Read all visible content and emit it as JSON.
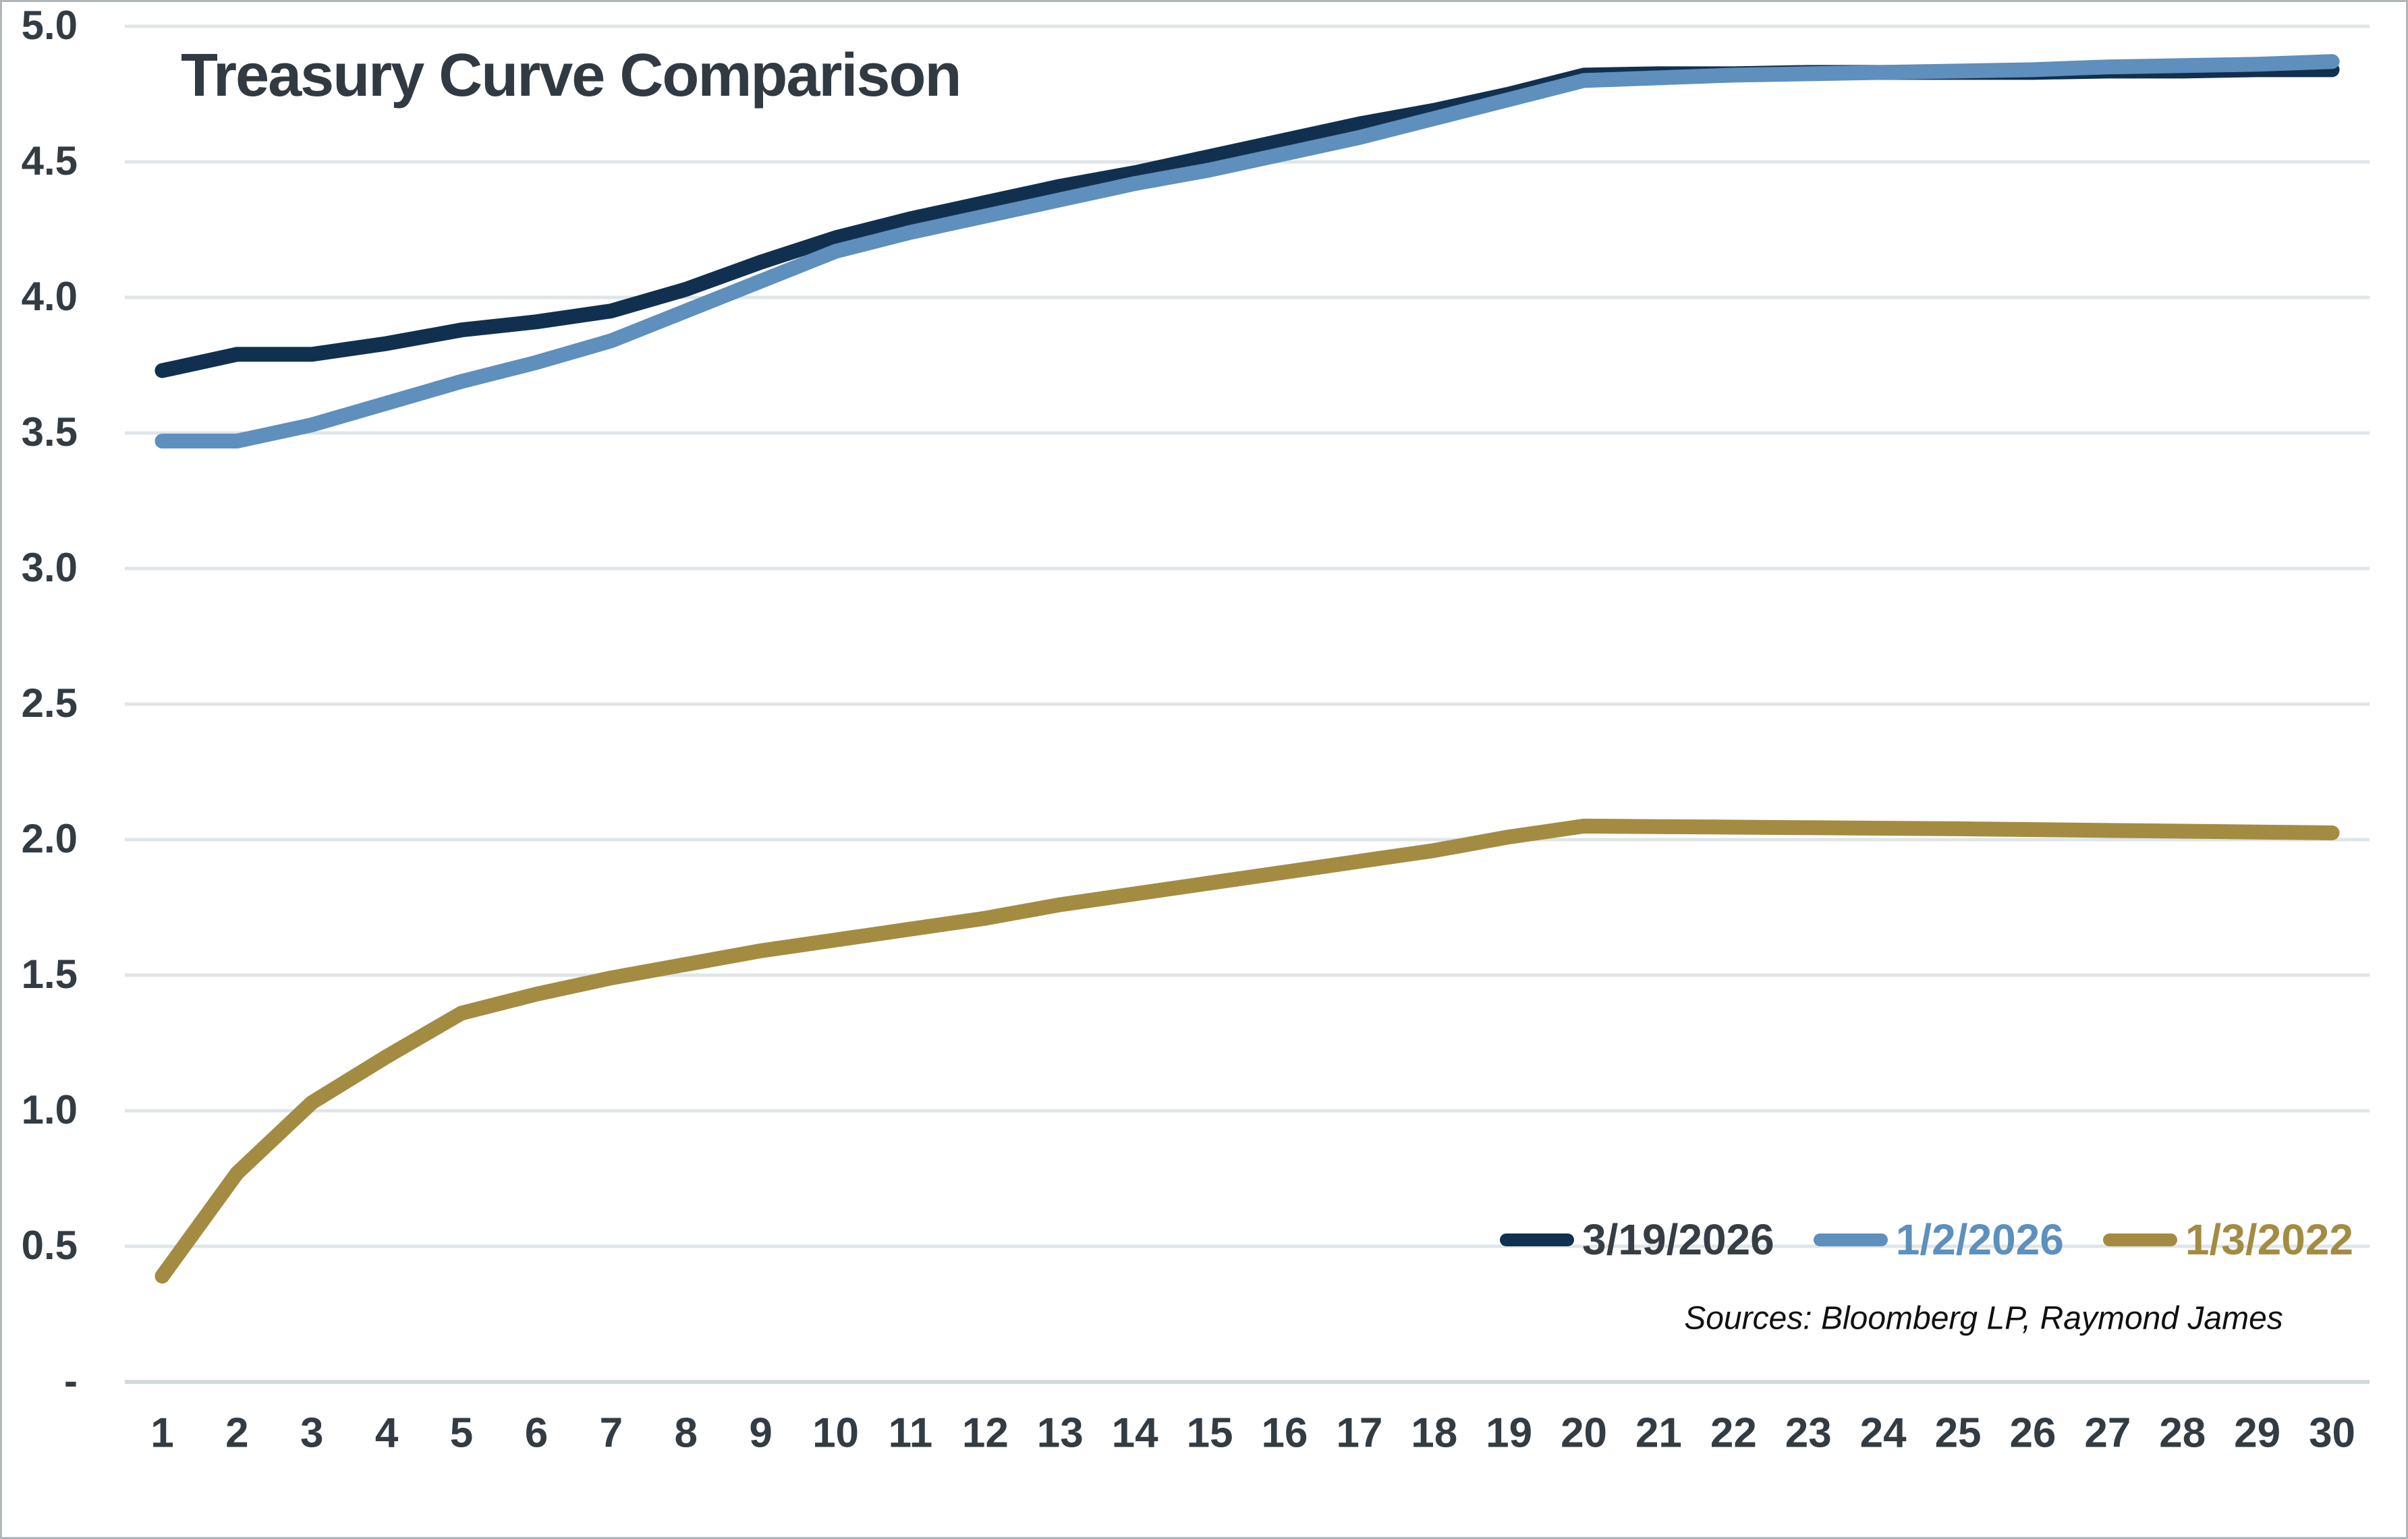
{
  "chart_data": {
    "type": "line",
    "title": "Treasury Curve Comparison",
    "sources_note": "Sources: Bloomberg LP, Raymond James",
    "xlabel": "",
    "ylabel": "",
    "x": [
      1,
      2,
      3,
      4,
      5,
      6,
      7,
      8,
      9,
      10,
      11,
      12,
      13,
      14,
      15,
      16,
      17,
      18,
      19,
      20,
      21,
      22,
      23,
      24,
      25,
      26,
      27,
      28,
      29,
      30
    ],
    "ylim": [
      0,
      5
    ],
    "grid": "horizontal",
    "legend_position": "inside-bottom-right",
    "y_ticks": [
      {
        "label": "5.0",
        "value": 5.0
      },
      {
        "label": "4.5",
        "value": 4.5
      },
      {
        "label": "4.0",
        "value": 4.0
      },
      {
        "label": "3.5",
        "value": 3.5
      },
      {
        "label": "3.0",
        "value": 3.0
      },
      {
        "label": "2.5",
        "value": 2.5
      },
      {
        "label": "2.0",
        "value": 2.0
      },
      {
        "label": "1.5",
        "value": 1.5
      },
      {
        "label": "1.0",
        "value": 1.0
      },
      {
        "label": "0.5",
        "value": 0.5
      },
      {
        "label": "-",
        "value": 0.0
      }
    ],
    "series": [
      {
        "name": "3/19/2026",
        "color": "#11304f",
        "label_color": "#363d45",
        "values": [
          3.73,
          3.79,
          3.79,
          3.83,
          3.88,
          3.91,
          3.95,
          4.03,
          4.13,
          4.22,
          4.29,
          4.35,
          4.41,
          4.46,
          4.52,
          4.58,
          4.64,
          4.69,
          4.75,
          4.82,
          4.825,
          4.825,
          4.83,
          4.83,
          4.83,
          4.83,
          4.835,
          4.835,
          4.84,
          4.84
        ]
      },
      {
        "name": "1/2/2026",
        "color": "#5e8fbd",
        "label_color": "#5e8fbd",
        "values": [
          3.47,
          3.47,
          3.53,
          3.61,
          3.69,
          3.76,
          3.84,
          3.95,
          4.06,
          4.17,
          4.24,
          4.3,
          4.36,
          4.42,
          4.47,
          4.53,
          4.59,
          4.66,
          4.73,
          4.8,
          4.81,
          4.82,
          4.825,
          4.83,
          4.835,
          4.84,
          4.85,
          4.855,
          4.86,
          4.87
        ]
      },
      {
        "name": "1/3/2022",
        "color": "#a38c42",
        "label_color": "#a38c42",
        "values": [
          0.39,
          0.77,
          1.03,
          1.2,
          1.36,
          1.43,
          1.49,
          1.54,
          1.59,
          1.63,
          1.67,
          1.71,
          1.76,
          1.8,
          1.84,
          1.88,
          1.92,
          1.96,
          2.01,
          2.05,
          2.048,
          2.046,
          2.044,
          2.042,
          2.04,
          2.037,
          2.034,
          2.031,
          2.028,
          2.025
        ]
      }
    ]
  },
  "colors": {
    "background": "#ffffff",
    "gridline": "#dfe5e9",
    "zero_line": "#d3dadd",
    "axis_text": "#333b43",
    "title_text": "#313a42",
    "sources_text": "#101010",
    "frame_border": "#b0b6ba"
  }
}
